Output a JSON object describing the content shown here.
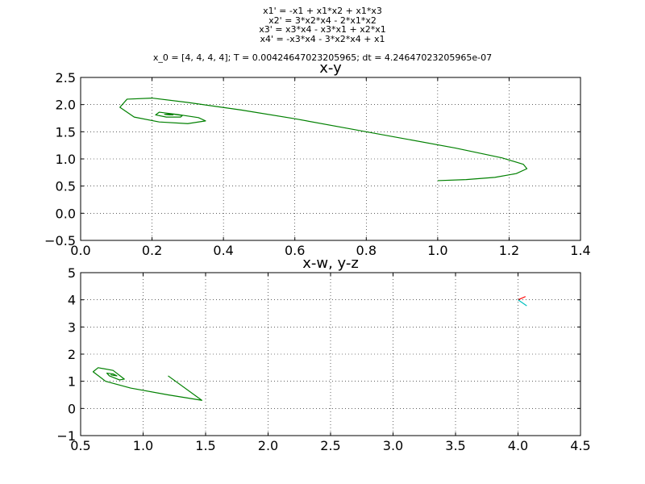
{
  "header": {
    "equations": [
      "x1' = -x1 + x1*x2 + x1*x3",
      "x2' = 3*x2*x4 - 2*x1*x2",
      "x3' = x3*x4 - x3*x1 + x2*x1",
      "x4' = -x3*x4 - 3*x2*x4 + x1"
    ],
    "params": "x_0 = [4, 4, 4, 4]; T = 0.00424647023205965; dt = 4.24647023205965e-07"
  },
  "chart_data": [
    {
      "type": "line",
      "title": "x-y",
      "xlim": [
        0.0,
        1.4
      ],
      "ylim": [
        -0.5,
        2.5
      ],
      "xticks": [
        "0.0",
        "0.2",
        "0.4",
        "0.6",
        "0.8",
        "1.0",
        "1.2",
        "1.4"
      ],
      "yticks": [
        "−0.5",
        "0.0",
        "0.5",
        "1.0",
        "1.5",
        "2.0",
        "2.5"
      ],
      "grid": true,
      "series": [
        {
          "color": "#008000",
          "x": [
            1.0,
            1.08,
            1.16,
            1.22,
            1.25,
            1.24,
            1.18,
            1.05,
            0.9,
            0.75,
            0.6,
            0.45,
            0.3,
            0.2,
            0.13,
            0.11,
            0.15,
            0.22,
            0.3,
            0.35,
            0.33,
            0.27,
            0.22,
            0.21,
            0.24,
            0.28,
            0.285,
            0.255,
            0.235,
            0.25,
            0.26
          ],
          "y": [
            0.6,
            0.62,
            0.66,
            0.73,
            0.82,
            0.9,
            1.02,
            1.2,
            1.38,
            1.56,
            1.74,
            1.9,
            2.04,
            2.12,
            2.1,
            1.95,
            1.77,
            1.68,
            1.65,
            1.7,
            1.76,
            1.82,
            1.86,
            1.81,
            1.77,
            1.77,
            1.8,
            1.83,
            1.82,
            1.81,
            1.81
          ]
        }
      ]
    },
    {
      "type": "line",
      "title": "x-w, y-z",
      "xlim": [
        0.5,
        4.5
      ],
      "ylim": [
        -1,
        5
      ],
      "xticks": [
        "0.5",
        "1.0",
        "1.5",
        "2.0",
        "2.5",
        "3.0",
        "3.5",
        "4.0",
        "4.5"
      ],
      "yticks": [
        "−1",
        "0",
        "1",
        "2",
        "3",
        "4",
        "5"
      ],
      "grid": true,
      "series": [
        {
          "color": "#008000",
          "x": [
            1.2,
            1.47,
            1.2,
            0.9,
            0.7,
            0.6,
            0.64,
            0.76,
            0.85,
            0.81,
            0.73,
            0.71,
            0.76,
            0.79,
            0.76,
            0.74
          ],
          "y": [
            1.2,
            0.3,
            0.5,
            0.75,
            1.0,
            1.35,
            1.5,
            1.4,
            1.08,
            1.05,
            1.2,
            1.3,
            1.27,
            1.2,
            1.22,
            1.24
          ]
        },
        {
          "color": "#ff0000",
          "x": [
            4.0,
            4.06
          ],
          "y": [
            4.0,
            4.12
          ]
        },
        {
          "color": "#00bfbf",
          "x": [
            4.0,
            4.07
          ],
          "y": [
            4.0,
            3.78
          ]
        }
      ]
    }
  ]
}
